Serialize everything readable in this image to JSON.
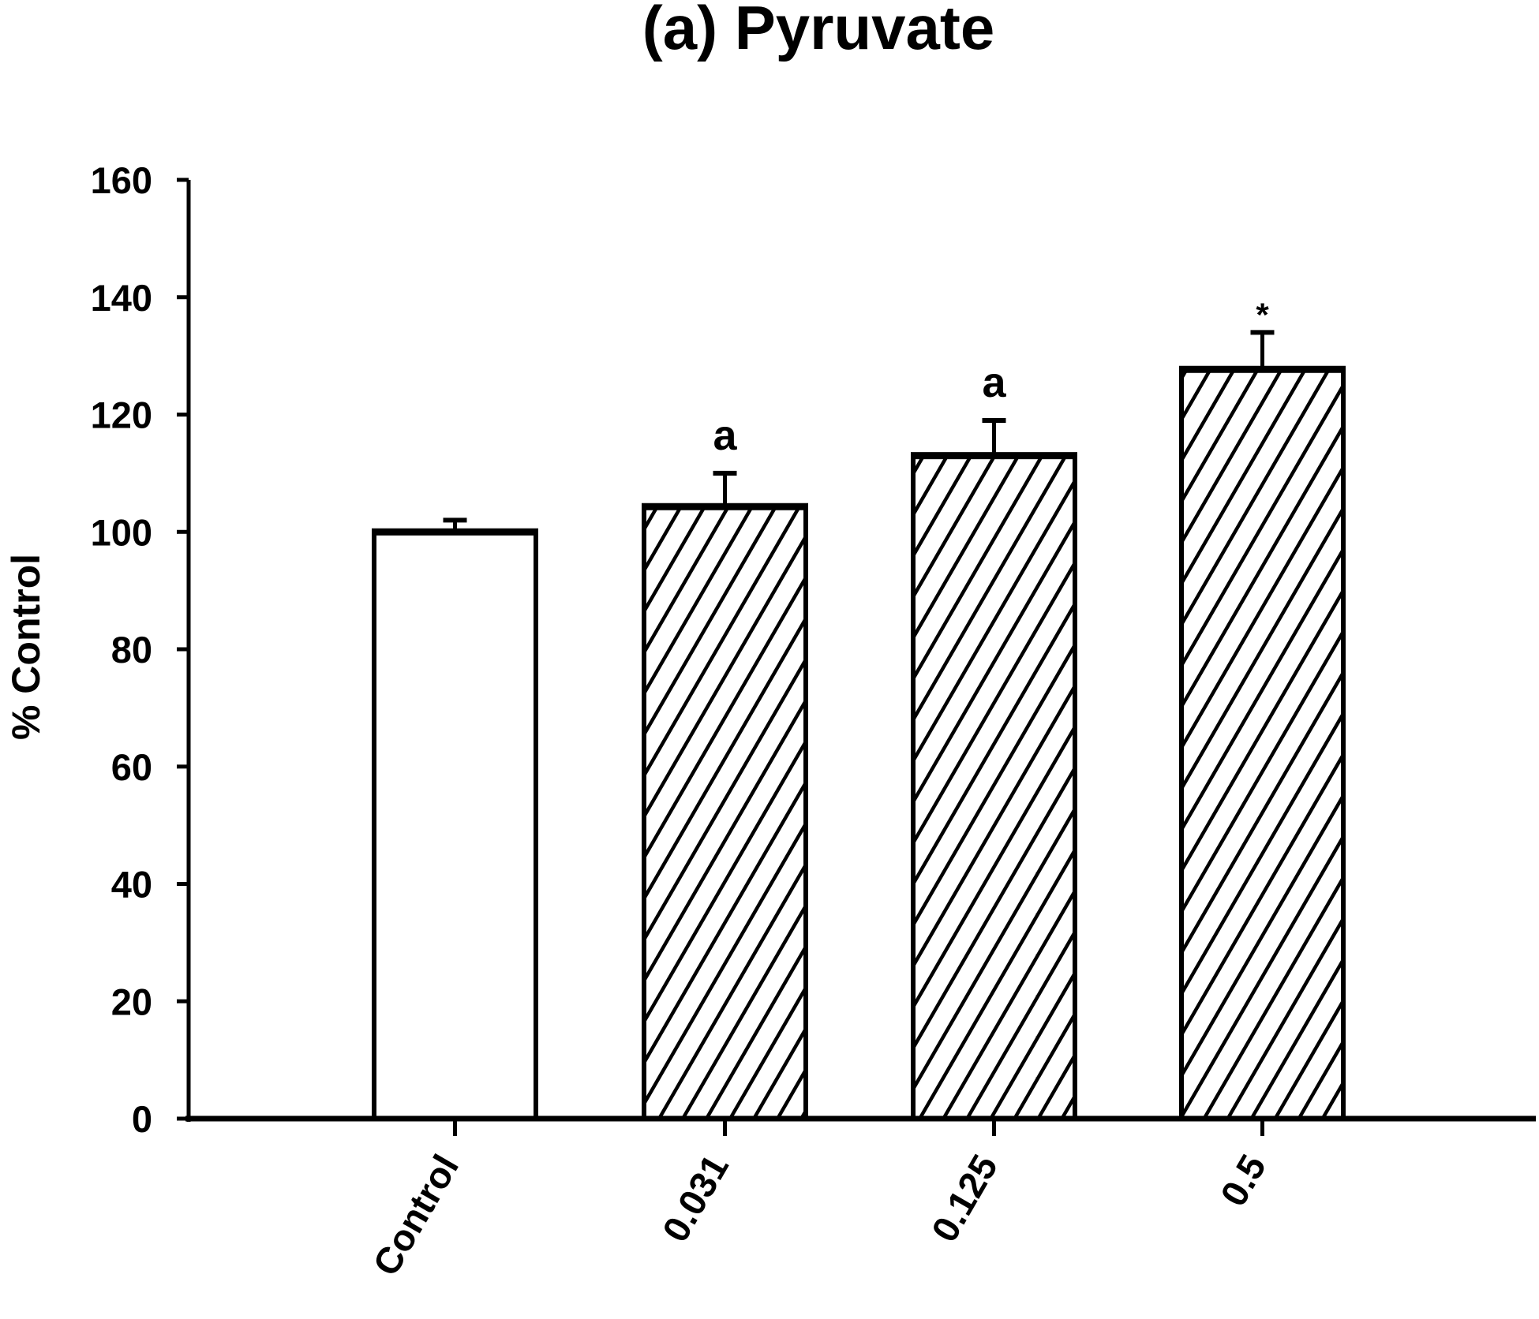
{
  "chart_data": {
    "type": "bar",
    "title": "(a) Pyruvate",
    "xlabel": "",
    "ylabel": "% Control",
    "ylim": [
      0,
      160
    ],
    "yticks": [
      0,
      20,
      40,
      60,
      80,
      100,
      120,
      140,
      160
    ],
    "grid": false,
    "legend": null,
    "categories": [
      "Control",
      "0.031",
      "0.125",
      "0.5"
    ],
    "values": [
      100,
      104.3,
      113,
      127.7
    ],
    "error_upper": [
      102,
      110,
      119,
      134
    ],
    "annotations": [
      "",
      "a",
      "a",
      "*"
    ],
    "patterns": [
      "none",
      "diagonal-hatch",
      "diagonal-hatch",
      "diagonal-hatch"
    ]
  }
}
